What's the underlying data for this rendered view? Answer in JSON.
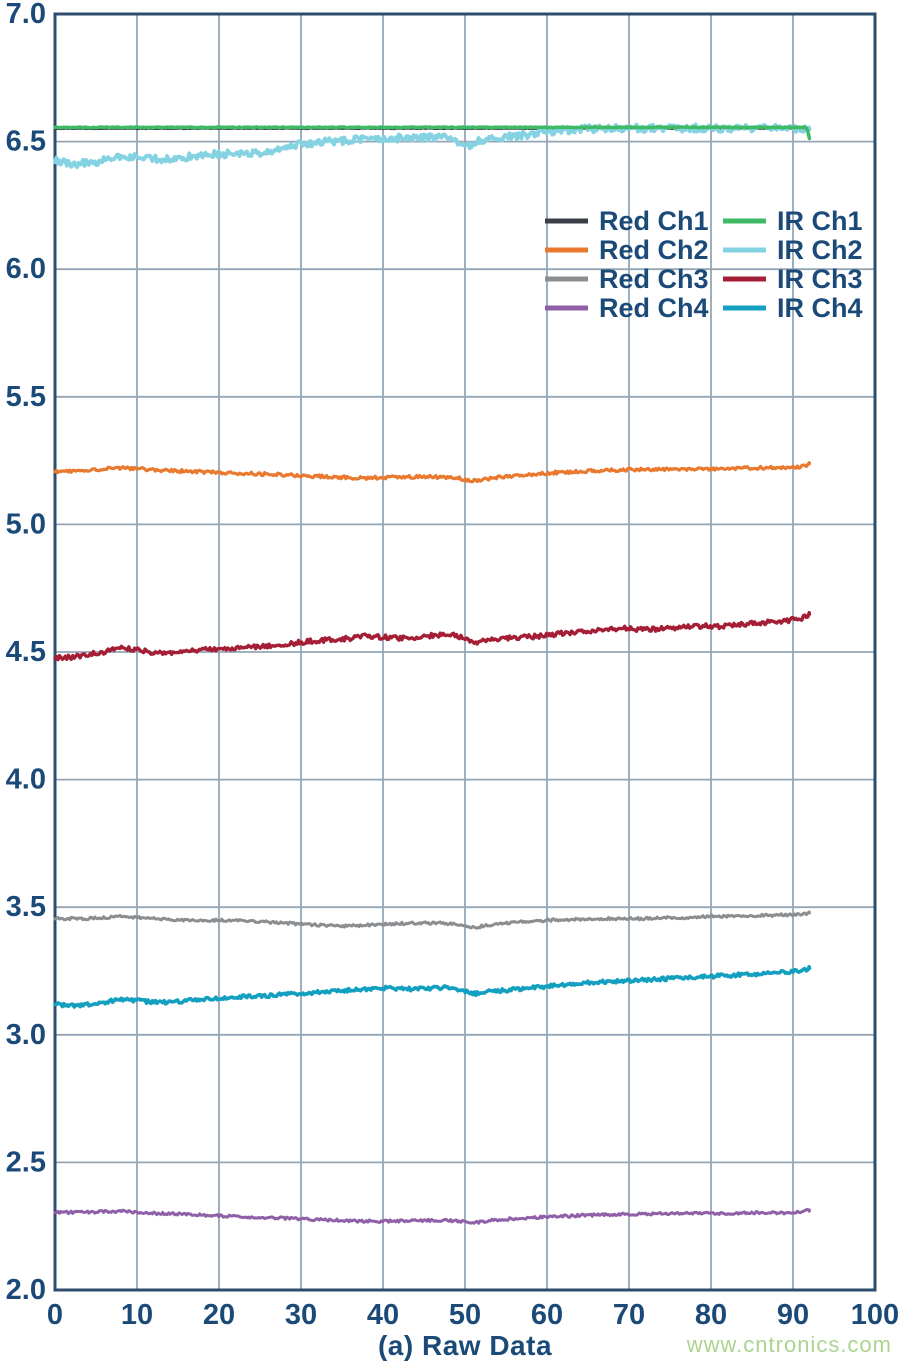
{
  "page": {
    "watermark": "www.cntronics.com"
  },
  "style": {
    "text_color": "#1b4a78",
    "grid_color": "#94a6b6",
    "axis_box_color": "#2e4d6c",
    "background": "#ffffff",
    "watermark_color": "#abd48e"
  },
  "chart_data": {
    "type": "line",
    "title": "",
    "xlabel": "(a) Raw Data",
    "ylabel": "",
    "xlim": [
      0,
      100
    ],
    "ylim": [
      2.0,
      7.0
    ],
    "grid": true,
    "x_ticks": [
      0,
      10,
      20,
      30,
      40,
      50,
      60,
      70,
      80,
      90,
      100
    ],
    "x_tick_labels": [
      "0",
      "10",
      "20",
      "30",
      "40",
      "50",
      "60",
      "70",
      "80",
      "90",
      "100"
    ],
    "y_ticks": [
      2.0,
      2.5,
      3.0,
      3.5,
      4.0,
      4.5,
      5.0,
      5.5,
      6.0,
      6.5,
      7.0
    ],
    "y_tick_labels": [
      "2.0",
      "2.5",
      "3.0",
      "3.5",
      "4.0",
      "4.5",
      "5.0",
      "5.5",
      "6.0",
      "6.5",
      "7.0"
    ],
    "legend_position": "inside-upper-right",
    "legend": {
      "columns": [
        [
          "Red Ch1",
          "Red Ch2",
          "Red Ch3",
          "Red Ch4"
        ],
        [
          "IR Ch1",
          "IR Ch2",
          "IR Ch3",
          "IR Ch4"
        ]
      ]
    },
    "series": [
      {
        "name": "Red Ch1",
        "color": "#3b3e46",
        "noise": 0.001,
        "width": 3,
        "points": [
          [
            0,
            6.552
          ],
          [
            92,
            6.552
          ]
        ]
      },
      {
        "name": "IR Ch2",
        "color": "#85d2e2",
        "noise": 0.014,
        "width": 4,
        "points": [
          [
            0,
            6.425
          ],
          [
            2,
            6.412
          ],
          [
            5,
            6.42
          ],
          [
            8,
            6.443
          ],
          [
            11,
            6.437
          ],
          [
            14,
            6.43
          ],
          [
            17,
            6.443
          ],
          [
            20,
            6.452
          ],
          [
            23,
            6.45
          ],
          [
            26,
            6.46
          ],
          [
            28,
            6.47
          ],
          [
            30,
            6.492
          ],
          [
            33,
            6.5
          ],
          [
            36,
            6.506
          ],
          [
            39,
            6.512
          ],
          [
            42,
            6.514
          ],
          [
            45,
            6.516
          ],
          [
            48,
            6.513
          ],
          [
            50,
            6.478
          ],
          [
            52,
            6.505
          ],
          [
            54,
            6.515
          ],
          [
            56,
            6.52
          ],
          [
            58,
            6.53
          ],
          [
            60,
            6.538
          ],
          [
            62,
            6.545
          ],
          [
            65,
            6.55
          ],
          [
            70,
            6.552
          ],
          [
            75,
            6.553
          ],
          [
            80,
            6.553
          ],
          [
            85,
            6.553
          ],
          [
            90,
            6.553
          ],
          [
            92,
            6.548
          ]
        ]
      },
      {
        "name": "IR Ch1",
        "color": "#3eb964",
        "noise": 0.0015,
        "width": 3.5,
        "points": [
          [
            0,
            6.556
          ],
          [
            91.6,
            6.556
          ],
          [
            91.8,
            6.54
          ],
          [
            92,
            6.512
          ]
        ]
      },
      {
        "name": "Red Ch2",
        "color": "#e8792e",
        "noise": 0.006,
        "width": 3.2,
        "points": [
          [
            0,
            5.208
          ],
          [
            3,
            5.21
          ],
          [
            6,
            5.218
          ],
          [
            8,
            5.222
          ],
          [
            10,
            5.218
          ],
          [
            13,
            5.212
          ],
          [
            16,
            5.208
          ],
          [
            19,
            5.205
          ],
          [
            22,
            5.2
          ],
          [
            25,
            5.198
          ],
          [
            28,
            5.194
          ],
          [
            31,
            5.19
          ],
          [
            34,
            5.186
          ],
          [
            37,
            5.182
          ],
          [
            40,
            5.184
          ],
          [
            43,
            5.186
          ],
          [
            46,
            5.186
          ],
          [
            49,
            5.183
          ],
          [
            51,
            5.17
          ],
          [
            53,
            5.18
          ],
          [
            55,
            5.188
          ],
          [
            58,
            5.196
          ],
          [
            61,
            5.203
          ],
          [
            64,
            5.208
          ],
          [
            67,
            5.212
          ],
          [
            70,
            5.215
          ],
          [
            73,
            5.215
          ],
          [
            76,
            5.216
          ],
          [
            79,
            5.217
          ],
          [
            82,
            5.22
          ],
          [
            85,
            5.221
          ],
          [
            88,
            5.222
          ],
          [
            90,
            5.224
          ],
          [
            91.5,
            5.228
          ],
          [
            92,
            5.238
          ]
        ]
      },
      {
        "name": "IR Ch3",
        "color": "#a41e35",
        "noise": 0.009,
        "width": 3.4,
        "points": [
          [
            0,
            4.478
          ],
          [
            2,
            4.48
          ],
          [
            4,
            4.49
          ],
          [
            6,
            4.5
          ],
          [
            8,
            4.515
          ],
          [
            10,
            4.508
          ],
          [
            12,
            4.497
          ],
          [
            14,
            4.497
          ],
          [
            16,
            4.503
          ],
          [
            18,
            4.508
          ],
          [
            20,
            4.513
          ],
          [
            22,
            4.516
          ],
          [
            24,
            4.52
          ],
          [
            26,
            4.523
          ],
          [
            28,
            4.528
          ],
          [
            30,
            4.538
          ],
          [
            32,
            4.545
          ],
          [
            34,
            4.55
          ],
          [
            36,
            4.553
          ],
          [
            38,
            4.563
          ],
          [
            40,
            4.558
          ],
          [
            42,
            4.555
          ],
          [
            44,
            4.556
          ],
          [
            46,
            4.566
          ],
          [
            48,
            4.568
          ],
          [
            50,
            4.556
          ],
          [
            51,
            4.537
          ],
          [
            53,
            4.546
          ],
          [
            55,
            4.553
          ],
          [
            57,
            4.558
          ],
          [
            59,
            4.562
          ],
          [
            61,
            4.57
          ],
          [
            63,
            4.576
          ],
          [
            65,
            4.58
          ],
          [
            67,
            4.589
          ],
          [
            69,
            4.593
          ],
          [
            71,
            4.59
          ],
          [
            73,
            4.59
          ],
          [
            75,
            4.594
          ],
          [
            77,
            4.599
          ],
          [
            79,
            4.602
          ],
          [
            81,
            4.6
          ],
          [
            83,
            4.605
          ],
          [
            85,
            4.612
          ],
          [
            87,
            4.617
          ],
          [
            89,
            4.622
          ],
          [
            91,
            4.632
          ],
          [
            92,
            4.648
          ]
        ]
      },
      {
        "name": "Red Ch3",
        "color": "#8b8e91",
        "noise": 0.005,
        "width": 3,
        "points": [
          [
            0,
            3.455
          ],
          [
            4,
            3.456
          ],
          [
            8,
            3.464
          ],
          [
            11,
            3.458
          ],
          [
            14,
            3.452
          ],
          [
            17,
            3.45
          ],
          [
            20,
            3.449
          ],
          [
            23,
            3.446
          ],
          [
            26,
            3.442
          ],
          [
            29,
            3.436
          ],
          [
            32,
            3.43
          ],
          [
            35,
            3.426
          ],
          [
            38,
            3.43
          ],
          [
            41,
            3.434
          ],
          [
            44,
            3.438
          ],
          [
            47,
            3.438
          ],
          [
            49,
            3.434
          ],
          [
            51,
            3.42
          ],
          [
            53,
            3.43
          ],
          [
            56,
            3.44
          ],
          [
            59,
            3.447
          ],
          [
            62,
            3.451
          ],
          [
            65,
            3.454
          ],
          [
            68,
            3.455
          ],
          [
            71,
            3.455
          ],
          [
            74,
            3.458
          ],
          [
            77,
            3.46
          ],
          [
            80,
            3.464
          ],
          [
            83,
            3.464
          ],
          [
            86,
            3.467
          ],
          [
            89,
            3.47
          ],
          [
            91,
            3.472
          ],
          [
            92,
            3.477
          ]
        ]
      },
      {
        "name": "IR Ch4",
        "color": "#13a0c0",
        "noise": 0.007,
        "width": 3.6,
        "points": [
          [
            0,
            3.12
          ],
          [
            2,
            3.113
          ],
          [
            4,
            3.118
          ],
          [
            6,
            3.128
          ],
          [
            8,
            3.138
          ],
          [
            10,
            3.134
          ],
          [
            12,
            3.128
          ],
          [
            14,
            3.128
          ],
          [
            16,
            3.133
          ],
          [
            18,
            3.14
          ],
          [
            20,
            3.144
          ],
          [
            22,
            3.148
          ],
          [
            24,
            3.151
          ],
          [
            26,
            3.154
          ],
          [
            28,
            3.158
          ],
          [
            30,
            3.162
          ],
          [
            32,
            3.166
          ],
          [
            34,
            3.17
          ],
          [
            36,
            3.175
          ],
          [
            38,
            3.18
          ],
          [
            40,
            3.184
          ],
          [
            42,
            3.181
          ],
          [
            44,
            3.179
          ],
          [
            46,
            3.183
          ],
          [
            48,
            3.185
          ],
          [
            50,
            3.172
          ],
          [
            51,
            3.16
          ],
          [
            53,
            3.17
          ],
          [
            55,
            3.175
          ],
          [
            57,
            3.18
          ],
          [
            59,
            3.187
          ],
          [
            61,
            3.193
          ],
          [
            63,
            3.199
          ],
          [
            65,
            3.203
          ],
          [
            67,
            3.207
          ],
          [
            69,
            3.211
          ],
          [
            71,
            3.214
          ],
          [
            73,
            3.217
          ],
          [
            75,
            3.22
          ],
          [
            77,
            3.224
          ],
          [
            79,
            3.227
          ],
          [
            81,
            3.231
          ],
          [
            83,
            3.234
          ],
          [
            85,
            3.237
          ],
          [
            87,
            3.241
          ],
          [
            89,
            3.246
          ],
          [
            91,
            3.252
          ],
          [
            92,
            3.26
          ]
        ]
      },
      {
        "name": "Red Ch4",
        "color": "#8f60a8",
        "noise": 0.005,
        "width": 3,
        "points": [
          [
            0,
            2.304
          ],
          [
            4,
            2.305
          ],
          [
            8,
            2.309
          ],
          [
            12,
            2.301
          ],
          [
            16,
            2.296
          ],
          [
            20,
            2.291
          ],
          [
            24,
            2.286
          ],
          [
            28,
            2.281
          ],
          [
            32,
            2.276
          ],
          [
            36,
            2.271
          ],
          [
            40,
            2.269
          ],
          [
            44,
            2.273
          ],
          [
            48,
            2.273
          ],
          [
            50,
            2.268
          ],
          [
            51,
            2.263
          ],
          [
            53,
            2.272
          ],
          [
            56,
            2.28
          ],
          [
            59,
            2.285
          ],
          [
            62,
            2.289
          ],
          [
            65,
            2.293
          ],
          [
            68,
            2.296
          ],
          [
            71,
            2.298
          ],
          [
            74,
            2.299
          ],
          [
            77,
            2.302
          ],
          [
            80,
            2.3
          ],
          [
            83,
            2.301
          ],
          [
            86,
            2.303
          ],
          [
            89,
            2.303
          ],
          [
            91,
            2.305
          ],
          [
            92,
            2.314
          ]
        ]
      }
    ]
  }
}
